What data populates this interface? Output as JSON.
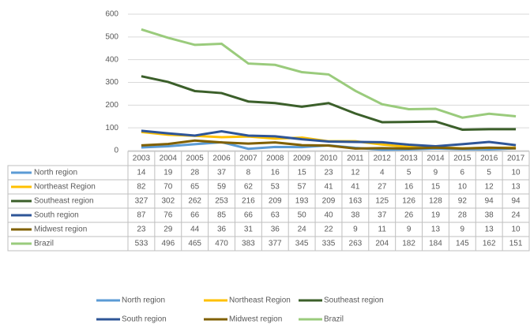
{
  "chart_data": {
    "type": "line",
    "categories": [
      "2003",
      "2004",
      "2005",
      "2006",
      "2007",
      "2008",
      "2009",
      "2010",
      "2011",
      "2012",
      "2013",
      "2014",
      "2015",
      "2016",
      "2017"
    ],
    "series": [
      {
        "name": "North region",
        "color": "#5b9bd5",
        "values": [
          14,
          19,
          28,
          37,
          8,
          16,
          15,
          23,
          12,
          4,
          5,
          9,
          6,
          5,
          10
        ]
      },
      {
        "name": "Northeast Region",
        "color": "#ffc000",
        "values": [
          82,
          70,
          65,
          59,
          62,
          53,
          57,
          41,
          41,
          27,
          16,
          15,
          10,
          12,
          13
        ]
      },
      {
        "name": "Southeast region",
        "color": "#3b5f2a",
        "values": [
          327,
          302,
          262,
          253,
          216,
          209,
          193,
          209,
          163,
          125,
          126,
          128,
          92,
          94,
          94
        ]
      },
      {
        "name": "South region",
        "color": "#2e5597",
        "values": [
          87,
          76,
          66,
          85,
          66,
          63,
          50,
          40,
          38,
          37,
          26,
          19,
          28,
          38,
          24
        ]
      },
      {
        "name": "Midwest region",
        "color": "#806000",
        "values": [
          23,
          29,
          44,
          36,
          31,
          36,
          24,
          22,
          9,
          11,
          9,
          13,
          9,
          13,
          10
        ]
      },
      {
        "name": "Brazil",
        "color": "#9acb7c",
        "values": [
          533,
          496,
          465,
          470,
          383,
          377,
          345,
          335,
          263,
          204,
          182,
          184,
          145,
          162,
          151
        ]
      }
    ],
    "ylim": [
      0,
      600
    ],
    "yticks": [
      0,
      100,
      200,
      300,
      400,
      500,
      600
    ],
    "grid": true,
    "legend": "bottom"
  }
}
